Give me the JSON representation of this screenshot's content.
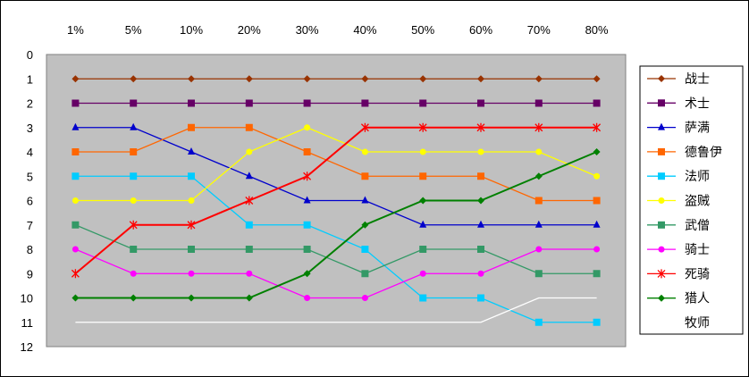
{
  "chart_data": {
    "type": "line",
    "title": "",
    "xlabel": "",
    "ylabel": "",
    "categories": [
      "1%",
      "5%",
      "10%",
      "20%",
      "30%",
      "40%",
      "50%",
      "60%",
      "70%",
      "80%"
    ],
    "ylim": [
      0,
      12
    ],
    "y_inverted": true,
    "yticks": [
      "0",
      "1",
      "2",
      "3",
      "4",
      "5",
      "6",
      "7",
      "8",
      "9",
      "10",
      "11",
      "12"
    ],
    "grid": false,
    "legend_position": "right",
    "plot_background": "#c0c0c0",
    "series": [
      {
        "name": "战士",
        "color": "#993300",
        "marker": "diamond",
        "values": [
          1,
          1,
          1,
          1,
          1,
          1,
          1,
          1,
          1,
          1
        ]
      },
      {
        "name": "术士",
        "color": "#660066",
        "marker": "square",
        "values": [
          2,
          2,
          2,
          2,
          2,
          2,
          2,
          2,
          2,
          2
        ]
      },
      {
        "name": "萨满",
        "color": "#0000cc",
        "marker": "triangle",
        "values": [
          3,
          3,
          4,
          5,
          6,
          6,
          7,
          7,
          7,
          7
        ]
      },
      {
        "name": "德鲁伊",
        "color": "#ff6600",
        "marker": "square",
        "values": [
          4,
          4,
          3,
          3,
          4,
          5,
          5,
          5,
          6,
          6
        ]
      },
      {
        "name": "法师",
        "color": "#00ccff",
        "marker": "square",
        "values": [
          5,
          5,
          5,
          7,
          7,
          8,
          10,
          10,
          11,
          11
        ]
      },
      {
        "name": "盗贼",
        "color": "#ffff00",
        "marker": "circle",
        "values": [
          6,
          6,
          6,
          4,
          3,
          4,
          4,
          4,
          4,
          5
        ]
      },
      {
        "name": "武僧",
        "color": "#339966",
        "marker": "square",
        "values": [
          7,
          8,
          8,
          8,
          8,
          9,
          8,
          8,
          9,
          9
        ]
      },
      {
        "name": "骑士",
        "color": "#ff00ff",
        "marker": "circle",
        "values": [
          8,
          9,
          9,
          9,
          10,
          10,
          9,
          9,
          8,
          8
        ]
      },
      {
        "name": "死骑",
        "color": "#ff0000",
        "marker": "star",
        "values": [
          9,
          7,
          7,
          6,
          5,
          3,
          3,
          3,
          3,
          3
        ]
      },
      {
        "name": "猎人",
        "color": "#008000",
        "marker": "diamond",
        "values": [
          10,
          10,
          10,
          10,
          9,
          7,
          6,
          6,
          5,
          4
        ]
      },
      {
        "name": "牧师",
        "color": "#ffffff",
        "marker": "none",
        "values": [
          11,
          11,
          11,
          11,
          11,
          11,
          11,
          11,
          10,
          10
        ]
      }
    ]
  }
}
